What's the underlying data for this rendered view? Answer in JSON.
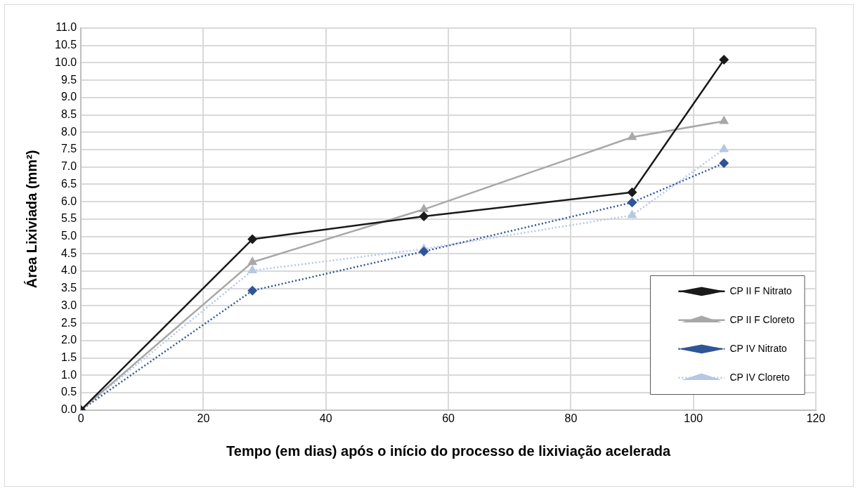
{
  "chart_data": {
    "type": "line",
    "xlabel": "Tempo (em dias) após o início do processo de lixiviação acelerada",
    "ylabel": "Área Lixiviada (mm²)",
    "x": [
      0,
      28,
      56,
      90,
      105
    ],
    "series": [
      {
        "name": "CP II F Nitrato",
        "color": "#1a1a1a",
        "marker": "diamond",
        "line_style": "solid",
        "values": [
          0,
          4.92,
          5.58,
          6.27,
          10.09
        ]
      },
      {
        "name": "CP II F Cloreto",
        "color": "#a9a7a7",
        "marker": "triangle",
        "line_style": "solid",
        "values": [
          0,
          4.26,
          5.78,
          7.86,
          8.32
        ]
      },
      {
        "name": "CP IV Nitrato",
        "color": "#2f5597",
        "marker": "diamond",
        "line_style": "dotted",
        "values": [
          0,
          3.44,
          4.57,
          5.98,
          7.11
        ]
      },
      {
        "name": "CP IV Cloreto",
        "color": "#b4c7e7",
        "marker": "triangle",
        "line_style": "dotted",
        "values": [
          0,
          4.02,
          4.64,
          5.61,
          7.51
        ]
      }
    ],
    "xlim": [
      0,
      120
    ],
    "xticks": [
      0,
      20,
      40,
      60,
      80,
      100,
      120
    ],
    "ylim": [
      0,
      11
    ],
    "yticks": [
      {
        "value": 0,
        "label": "0.0"
      },
      {
        "value": 0.5,
        "label": "0.5"
      },
      {
        "value": 1,
        "label": "1.0"
      },
      {
        "value": 1.5,
        "label": "1.5"
      },
      {
        "value": 2,
        "label": "2.0"
      },
      {
        "value": 2.5,
        "label": "2.5"
      },
      {
        "value": 3,
        "label": "3.0"
      },
      {
        "value": 3.5,
        "label": "3.5"
      },
      {
        "value": 4,
        "label": "4.0"
      },
      {
        "value": 4.5,
        "label": "4.5"
      },
      {
        "value": 5,
        "label": "5.0"
      },
      {
        "value": 5.5,
        "label": "5.5"
      },
      {
        "value": 6,
        "label": "6.0"
      },
      {
        "value": 6.5,
        "label": "6.5"
      },
      {
        "value": 7,
        "label": "7.0"
      },
      {
        "value": 7.5,
        "label": "7.5"
      },
      {
        "value": 8,
        "label": "8.0"
      },
      {
        "value": 8.5,
        "label": "8.5"
      },
      {
        "value": 9,
        "label": "9.0"
      },
      {
        "value": 9.5,
        "label": "9.5"
      },
      {
        "value": 10,
        "label": "10.0"
      },
      {
        "value": 10.5,
        "label": "10.5"
      },
      {
        "value": 11,
        "label": "11.0"
      }
    ],
    "grid": true,
    "legend": "bottom right"
  }
}
